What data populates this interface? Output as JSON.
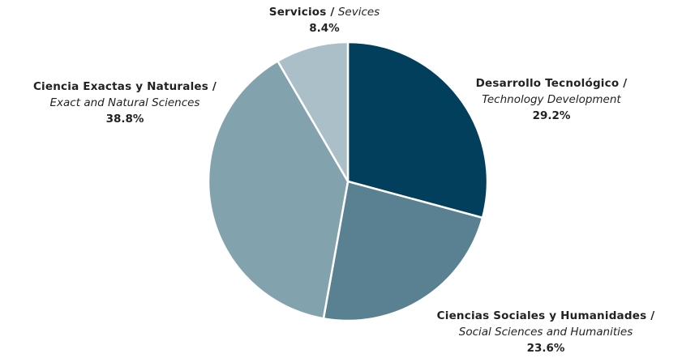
{
  "chart_data": {
    "type": "pie",
    "start": "12 o'clock",
    "direction": "clockwise",
    "slices": [
      {
        "label_es": "Desarrollo Tecnológico /",
        "label_en": "Technology Development",
        "value": 29.2,
        "value_label": "29.2%",
        "color": "#023f5c"
      },
      {
        "label_es": "Ciencias Sociales y Humanidades /",
        "label_en": "Social Sciences and Humanities",
        "value": 23.6,
        "value_label": "23.6%",
        "color": "#5a8191"
      },
      {
        "label_es": "Ciencia Exactas y Naturales /",
        "label_en": "Exact and Natural Sciences",
        "value": 38.8,
        "value_label": "38.8%",
        "color": "#82a2ae"
      },
      {
        "label_es": "Servicios /",
        "label_en": "Sevices",
        "value": 8.4,
        "value_label": "8.4%",
        "color": "#aabfc8"
      }
    ]
  }
}
